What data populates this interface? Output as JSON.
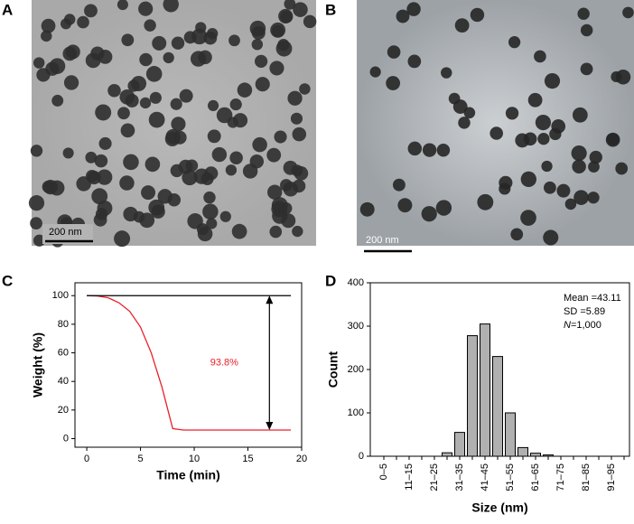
{
  "panels": {
    "a": {
      "label": "A",
      "scale": "200 nm"
    },
    "b": {
      "label": "B",
      "scale": "200 nm"
    },
    "c": {
      "label": "C"
    },
    "d": {
      "label": "D"
    }
  },
  "chart_data": [
    {
      "type": "line",
      "x_label": "Time (min)",
      "y_label": "Weight (%)",
      "x": [
        0,
        1,
        2,
        3,
        4,
        5,
        6,
        7,
        8,
        9,
        10,
        11,
        12,
        13,
        14,
        15,
        16,
        17,
        18,
        19
      ],
      "series": [
        {
          "color": "#e8202a",
          "values": [
            100,
            99.8,
            98.5,
            95,
            89,
            78,
            60,
            36,
            7,
            6,
            6,
            6,
            6,
            6,
            6,
            6,
            6,
            6,
            6,
            6
          ]
        },
        {
          "color": "#000000",
          "values": [
            100,
            100,
            100,
            100,
            100,
            100,
            100,
            100,
            100,
            100,
            100,
            100,
            100,
            100,
            100,
            100,
            100,
            100,
            100,
            100
          ]
        }
      ],
      "annotation": {
        "text": "93.8%",
        "color": "#e8202a"
      },
      "xlim": [
        -1.1,
        20
      ],
      "xticks": [
        0,
        5,
        10,
        15,
        20
      ],
      "ylim": [
        -6,
        109
      ],
      "yticks": [
        0,
        20,
        40,
        60,
        80,
        100
      ]
    },
    {
      "type": "bar",
      "x_label": "Size (nm)",
      "y_label": "Count",
      "categories": [
        "0–5",
        null,
        "11–15",
        null,
        "21–25",
        null,
        "31–35",
        null,
        "41–45",
        null,
        "51–55",
        null,
        "61–65",
        null,
        "71–75",
        null,
        "81–85",
        null,
        "91–95",
        null
      ],
      "values": [
        0,
        0,
        0,
        0,
        0,
        8,
        55,
        278,
        305,
        230,
        100,
        20,
        7,
        3,
        0,
        0,
        0,
        0,
        0,
        0
      ],
      "color": "#b0b0b0",
      "stats": [
        {
          "text": "Mean =43.11"
        },
        {
          "text": "SD =5.89"
        },
        {
          "italic": "N",
          "text": "=1,000"
        }
      ],
      "ylim": [
        0,
        400
      ],
      "yticks": [
        0,
        100,
        200,
        300,
        400
      ]
    }
  ]
}
